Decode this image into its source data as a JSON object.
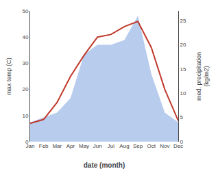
{
  "chart_data": {
    "type": "line",
    "categories": [
      "Jan",
      "Feb",
      "Mar",
      "Apr",
      "May",
      "Jun",
      "Jul",
      "Aug",
      "Sep",
      "Oct",
      "Nov",
      "Dec"
    ],
    "series": [
      {
        "type": "area",
        "axis": "y2",
        "color": "#b8ccee",
        "values": [
          4,
          5,
          6,
          9,
          18,
          20,
          20,
          21,
          26,
          14,
          6,
          4
        ]
      },
      {
        "type": "line",
        "color": "#c0392b",
        "values": [
          7,
          8.5,
          15,
          25,
          33,
          40,
          41,
          44,
          46,
          36,
          20,
          8
        ]
      }
    ],
    "xlabel": "date (month)",
    "ylabel": "max temp (C)",
    "y2label": "med. precipitation\n(kg/m2)",
    "ylim": [
      0,
      50
    ],
    "yticks": [
      0,
      10,
      20,
      30,
      40,
      50
    ],
    "y2lim": [
      0,
      27
    ],
    "y2ticks": [
      0,
      5,
      10,
      15,
      20,
      25
    ],
    "grid": false
  }
}
